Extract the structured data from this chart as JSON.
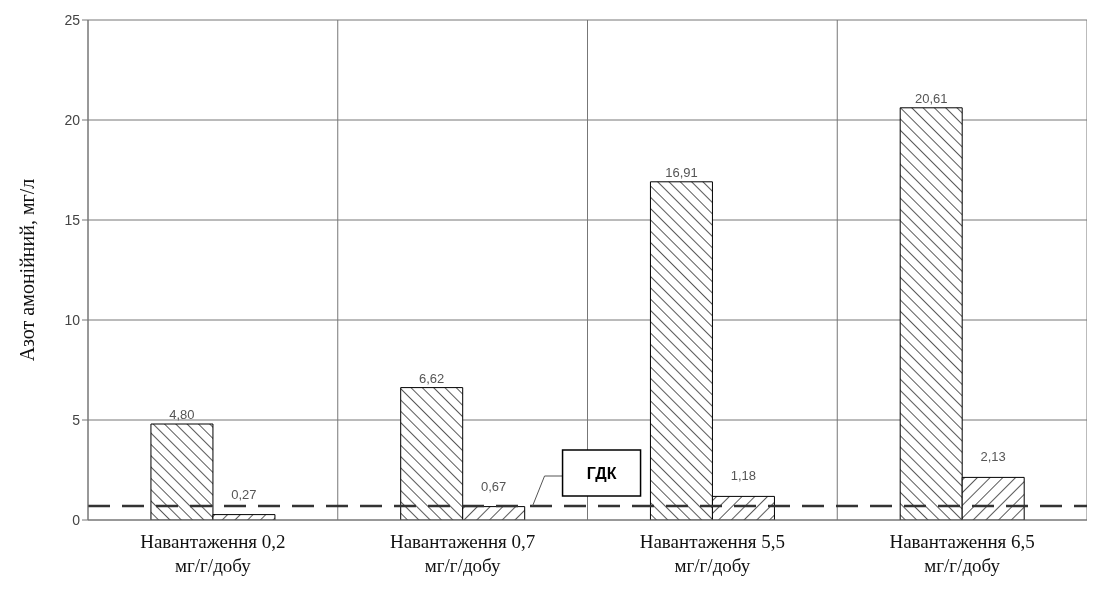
{
  "chart_data": {
    "type": "bar",
    "ylabel": "Азот амонійний, мг/л",
    "categories": [
      "Навантаження 0,2 мг/г/добу",
      "Навантаження 0,7 мг/г/добу",
      "Навантаження 5,5 мг/г/добу",
      "Навантаження 6,5 мг/г/добу"
    ],
    "series": [
      {
        "color": "#000000",
        "values": [
          4.8,
          6.62,
          16.91,
          20.61
        ],
        "value_labels": [
          "4,80",
          "6,62",
          "16,91",
          "20,61"
        ]
      },
      {
        "color": "#000000",
        "values": [
          0.27,
          0.67,
          1.18,
          2.13
        ],
        "value_labels": [
          "0,27",
          "0,67",
          "1,18",
          "2,13"
        ]
      }
    ],
    "ylim": [
      0,
      25
    ],
    "yticks": [
      0,
      5,
      10,
      15,
      20,
      25
    ],
    "grid": true,
    "legend": false,
    "ref_lines": [
      {
        "axis": "y",
        "value": 0.7,
        "label": "ГДК",
        "line_style": "dashed",
        "color": "#333333"
      }
    ]
  }
}
